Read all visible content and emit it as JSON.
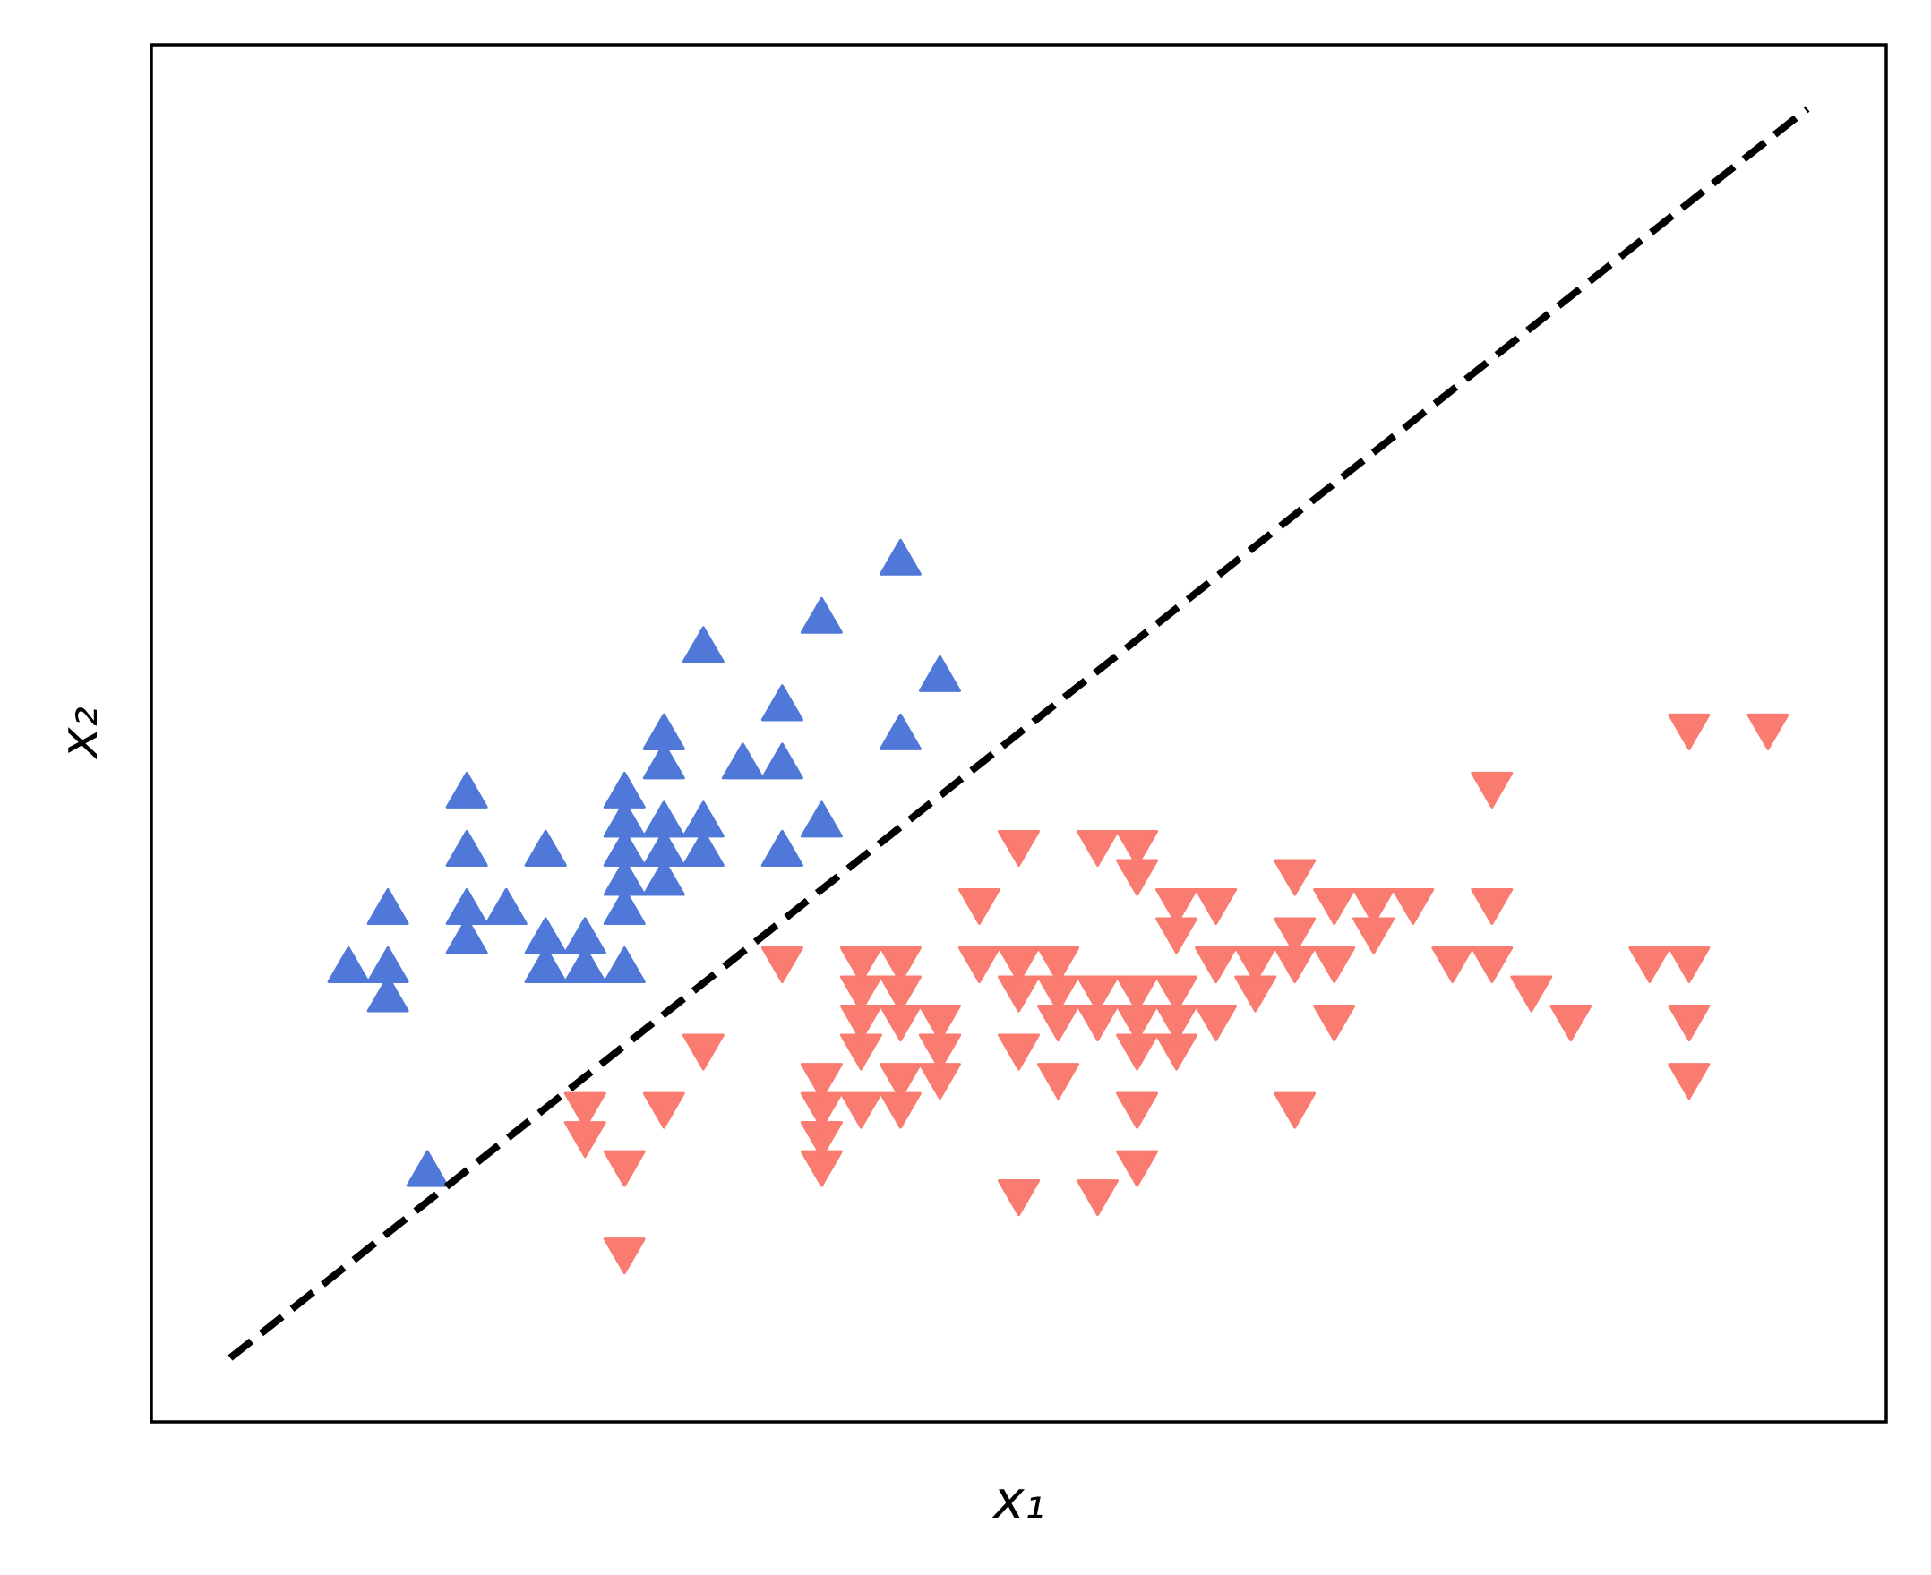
{
  "chart_data": {
    "type": "scatter",
    "xlabel": "x₁",
    "ylabel": "x₂",
    "xlim": [
      3.8,
      8.2
    ],
    "ylim": [
      1.43,
      6.16
    ],
    "series": [
      {
        "color": "#5078d8",
        "marker": "^",
        "x": [
          5.1,
          4.9,
          4.7,
          4.6,
          5.0,
          5.4,
          4.6,
          5.0,
          4.4,
          4.9,
          5.4,
          4.8,
          4.8,
          4.3,
          5.8,
          5.7,
          5.4,
          5.1,
          5.7,
          5.1,
          5.4,
          5.1,
          4.6,
          5.1,
          4.8,
          5.0,
          5.0,
          5.2,
          5.2,
          4.7,
          4.8,
          5.4,
          5.2,
          5.5,
          4.9,
          5.0,
          5.5,
          4.9,
          4.4,
          5.1,
          5.0,
          4.5,
          4.4,
          5.0,
          5.1,
          4.8,
          5.1,
          4.6,
          5.3,
          5.0
        ],
        "y": [
          3.5,
          3.0,
          3.2,
          3.1,
          3.6,
          3.9,
          3.4,
          3.4,
          2.9,
          3.1,
          3.7,
          3.4,
          3.0,
          3.0,
          4.0,
          4.4,
          3.9,
          3.5,
          3.8,
          3.8,
          3.4,
          3.7,
          3.6,
          3.3,
          3.4,
          3.0,
          3.4,
          3.5,
          3.4,
          3.2,
          3.1,
          3.4,
          4.1,
          4.2,
          3.1,
          3.2,
          3.5,
          3.1,
          3.0,
          3.4,
          3.5,
          2.3,
          3.2,
          3.5,
          3.8,
          3.0,
          3.8,
          3.2,
          3.7,
          3.3
        ]
      },
      {
        "color": "#fa7b6f",
        "marker": "v",
        "x": [
          7.0,
          6.4,
          6.9,
          5.5,
          6.5,
          5.7,
          6.3,
          4.9,
          6.6,
          5.2,
          5.0,
          5.9,
          6.0,
          6.1,
          5.6,
          6.7,
          5.6,
          5.8,
          6.2,
          5.6,
          5.9,
          6.1,
          6.3,
          6.1,
          6.4,
          6.6,
          6.8,
          6.7,
          6.0,
          5.7,
          5.5,
          5.5,
          5.8,
          6.0,
          5.4,
          6.0,
          6.7,
          6.3,
          5.6,
          5.5,
          5.5,
          6.1,
          5.8,
          5.0,
          5.6,
          5.7,
          5.7,
          6.2,
          5.1,
          5.7,
          6.3,
          5.8,
          7.1,
          6.3,
          6.5,
          7.6,
          4.9,
          7.3,
          6.7,
          7.2,
          6.5,
          6.4,
          6.8,
          5.7,
          5.8,
          6.4,
          6.5,
          7.7,
          7.7,
          6.0,
          6.9,
          5.6,
          7.7,
          6.3,
          6.7,
          7.2,
          6.2,
          6.1,
          6.4,
          7.2,
          7.4,
          7.9,
          6.4,
          6.3,
          6.1,
          7.7,
          6.3,
          6.4,
          6.0,
          6.9,
          6.7,
          6.9,
          5.8,
          6.8,
          6.7,
          6.7,
          6.3,
          6.5,
          6.2,
          5.9
        ],
        "y": [
          3.2,
          3.2,
          3.1,
          2.3,
          2.8,
          2.8,
          3.3,
          2.4,
          2.9,
          2.7,
          2.0,
          3.0,
          2.2,
          2.9,
          2.9,
          3.1,
          3.0,
          2.7,
          2.2,
          2.5,
          3.2,
          2.8,
          2.5,
          2.8,
          2.9,
          3.0,
          2.8,
          3.0,
          2.9,
          2.6,
          2.4,
          2.4,
          2.7,
          2.7,
          3.0,
          3.4,
          3.1,
          2.3,
          3.0,
          2.5,
          2.6,
          3.0,
          2.6,
          2.3,
          2.7,
          3.0,
          2.9,
          2.9,
          2.5,
          2.8,
          3.3,
          2.7,
          3.0,
          2.9,
          3.0,
          3.0,
          2.5,
          2.9,
          2.5,
          3.6,
          3.2,
          2.7,
          3.0,
          2.5,
          2.8,
          3.2,
          3.0,
          3.8,
          2.6,
          2.2,
          3.2,
          2.8,
          2.8,
          2.7,
          3.3,
          3.2,
          2.8,
          3.0,
          2.8,
          3.0,
          2.8,
          3.8,
          2.8,
          2.8,
          2.6,
          3.0,
          3.4,
          3.1,
          3.0,
          3.1,
          3.1,
          3.1,
          2.7,
          3.2,
          3.3,
          3.0,
          2.5,
          3.0,
          3.4,
          3.0
        ]
      },
      {
        "color": "#000000",
        "linestyle": "dashed",
        "x": [
          4.0,
          8.0
        ],
        "y": [
          1.65,
          5.94
        ]
      }
    ]
  }
}
